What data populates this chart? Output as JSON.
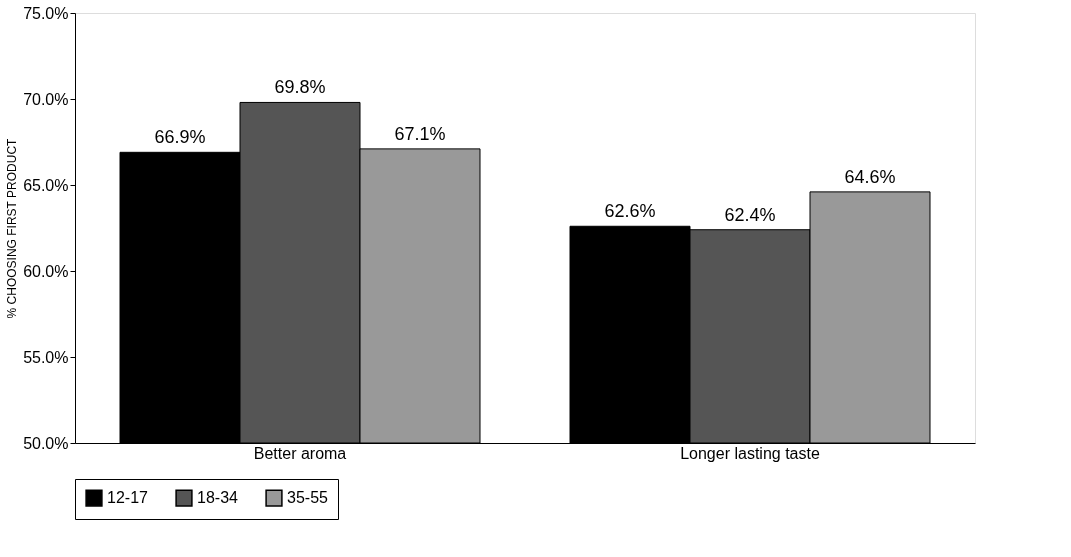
{
  "chart_data": {
    "type": "bar",
    "ylabel": "% CHOOSING FIRST PRODUCT",
    "categories": [
      "Better aroma",
      "Longer lasting taste"
    ],
    "series": [
      {
        "name": "12-17",
        "color": "#000000",
        "values": [
          66.9,
          62.6
        ],
        "value_labels": [
          "66.9%",
          "62.6%"
        ]
      },
      {
        "name": "18-34",
        "color": "#555555",
        "values": [
          69.8,
          62.4
        ],
        "value_labels": [
          "69.8%",
          "62.4%"
        ]
      },
      {
        "name": "35-55",
        "color": "#999999",
        "values": [
          67.1,
          64.6
        ],
        "value_labels": [
          "67.1%",
          "64.6%"
        ]
      }
    ],
    "ylim": [
      50,
      75
    ],
    "yticks": [
      {
        "value": 50,
        "label": "50.0%"
      },
      {
        "value": 55,
        "label": "55.0%"
      },
      {
        "value": 60,
        "label": "60.0%"
      },
      {
        "value": 65,
        "label": "65.0%"
      },
      {
        "value": 70,
        "label": "70.0%"
      },
      {
        "value": 75,
        "label": "75.0%"
      }
    ],
    "grid": false,
    "legend": "bottom"
  }
}
